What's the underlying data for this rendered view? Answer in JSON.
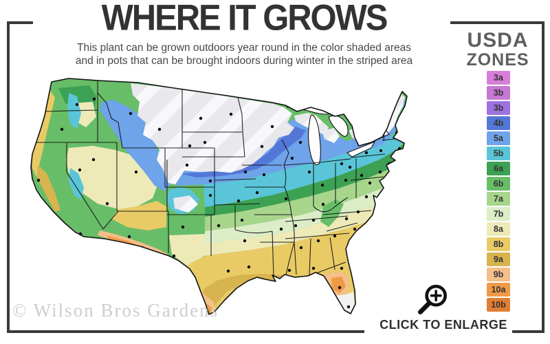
{
  "header": {
    "title": "WHERE IT GROWS",
    "subtitle_line1": "This plant can be grown outdoors year round in the color shaded areas",
    "subtitle_line2": "and in pots that can be brought indoors during winter in the striped area"
  },
  "legend": {
    "title_line1": "USDA",
    "title_line2": "ZONES",
    "zones": [
      {
        "label": "3a",
        "color": "#d77fd8"
      },
      {
        "label": "3b",
        "color": "#c579d2"
      },
      {
        "label": "3b",
        "color": "#9e71e3"
      },
      {
        "label": "4b",
        "color": "#5377d7"
      },
      {
        "label": "5a",
        "color": "#6fa3ea"
      },
      {
        "label": "5b",
        "color": "#5ac5d8"
      },
      {
        "label": "6a",
        "color": "#3da153"
      },
      {
        "label": "6b",
        "color": "#68bd68"
      },
      {
        "label": "7a",
        "color": "#a8d58c"
      },
      {
        "label": "7b",
        "color": "#dcedc8"
      },
      {
        "label": "8a",
        "color": "#eeeab8"
      },
      {
        "label": "8b",
        "color": "#e9cb66"
      },
      {
        "label": "9a",
        "color": "#d7b44e"
      },
      {
        "label": "9b",
        "color": "#f3bf8b"
      },
      {
        "label": "10a",
        "color": "#f09a47"
      },
      {
        "label": "10b",
        "color": "#e07e33"
      }
    ]
  },
  "map": {
    "striped_fill_base": "#e8e8ed",
    "striped_fill_stripe": "#f8f8fb",
    "not_hardy_fill": "#f2f2f2",
    "border_color": "#111111"
  },
  "footer": {
    "watermark": "© Wilson Bros Gardens",
    "enlarge_label": "CLICK TO ENLARGE",
    "icon": "magnifier-plus-icon"
  },
  "frame_color": "#3a3a3a"
}
